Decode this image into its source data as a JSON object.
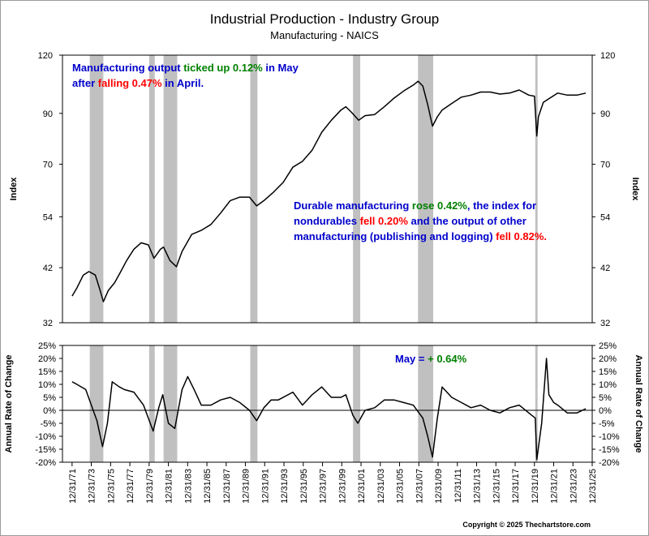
{
  "chart_data": [
    {
      "type": "line",
      "title": "Industrial Production - Industry Group",
      "subtitle": "Manufacturing - NAICS",
      "ylabel": "Index",
      "yscale": "log",
      "ylim": [
        32,
        120
      ],
      "yticks": [
        32,
        42,
        54,
        70,
        90,
        120
      ],
      "xlim": [
        "1971-01-01",
        "2025-12-31"
      ],
      "grid": false,
      "recessions": [
        [
          "1969-12-01",
          "1970-11-30"
        ],
        [
          "1973-11-01",
          "1975-03-31"
        ],
        [
          "1980-01-01",
          "1980-07-31"
        ],
        [
          "1981-07-01",
          "1982-11-30"
        ],
        [
          "1990-07-01",
          "1991-03-31"
        ],
        [
          "2001-03-01",
          "2001-11-30"
        ],
        [
          "2007-12-01",
          "2009-06-30"
        ],
        [
          "2020-02-01",
          "2020-04-30"
        ]
      ],
      "annotations": [
        {
          "parts": [
            {
              "text": "Manufacturing output ",
              "color": "#0000cc"
            },
            {
              "text": "ticked up 0.12%",
              "color": "#008000"
            },
            {
              "text": " in May",
              "color": "#0000cc"
            }
          ]
        },
        {
          "parts": [
            {
              "text": "after ",
              "color": "#0000cc"
            },
            {
              "text": "falling 0.47%",
              "color": "#ff0000"
            },
            {
              "text": " in April.",
              "color": "#0000cc"
            }
          ]
        },
        {
          "parts": [
            {
              "text": "Durable manufacturing ",
              "color": "#0000cc"
            },
            {
              "text": "rose 0.42%",
              "color": "#008000"
            },
            {
              "text": ", the index for",
              "color": "#0000cc"
            }
          ]
        },
        {
          "parts": [
            {
              "text": "nondurables ",
              "color": "#0000cc"
            },
            {
              "text": "fell 0.20%",
              "color": "#ff0000"
            },
            {
              "text": " and the output of other",
              "color": "#0000cc"
            }
          ]
        },
        {
          "parts": [
            {
              "text": "manufacturing (publishing and logging) ",
              "color": "#0000cc"
            },
            {
              "text": "fell 0.82%.",
              "color": "#ff0000"
            }
          ]
        }
      ],
      "series": [
        {
          "values": [
            [
              "1972-01-01",
              36.5
            ],
            [
              "1972-07-01",
              38.0
            ],
            [
              "1973-03-01",
              40.5
            ],
            [
              "1973-10-01",
              41.2
            ],
            [
              "1974-06-01",
              40.5
            ],
            [
              "1974-11-01",
              38.0
            ],
            [
              "1975-04-01",
              35.5
            ],
            [
              "1975-10-01",
              37.5
            ],
            [
              "1976-06-01",
              39.0
            ],
            [
              "1977-01-01",
              41.0
            ],
            [
              "1977-09-01",
              43.5
            ],
            [
              "1978-06-01",
              46.0
            ],
            [
              "1979-03-01",
              47.5
            ],
            [
              "1979-12-01",
              47.0
            ],
            [
              "1980-07-01",
              44.0
            ],
            [
              "1981-03-01",
              46.0
            ],
            [
              "1981-07-01",
              46.5
            ],
            [
              "1982-03-01",
              43.5
            ],
            [
              "1982-11-01",
              42.2
            ],
            [
              "1983-06-01",
              45.5
            ],
            [
              "1984-06-01",
              49.5
            ],
            [
              "1985-06-01",
              50.5
            ],
            [
              "1986-06-01",
              52.0
            ],
            [
              "1987-06-01",
              55.0
            ],
            [
              "1988-06-01",
              58.5
            ],
            [
              "1989-06-01",
              59.5
            ],
            [
              "1990-06-01",
              59.5
            ],
            [
              "1991-03-01",
              57.0
            ],
            [
              "1991-12-01",
              58.5
            ],
            [
              "1992-12-01",
              61.0
            ],
            [
              "1993-12-01",
              64.0
            ],
            [
              "1994-12-01",
              69.0
            ],
            [
              "1995-12-01",
              71.0
            ],
            [
              "1996-12-01",
              75.0
            ],
            [
              "1997-12-01",
              82.0
            ],
            [
              "1998-12-01",
              87.0
            ],
            [
              "1999-12-01",
              91.5
            ],
            [
              "2000-06-01",
              93.0
            ],
            [
              "2001-01-01",
              90.5
            ],
            [
              "2001-10-01",
              87.0
            ],
            [
              "2002-06-01",
              89.0
            ],
            [
              "2003-06-01",
              89.5
            ],
            [
              "2004-06-01",
              93.0
            ],
            [
              "2005-06-01",
              97.0
            ],
            [
              "2006-06-01",
              100.5
            ],
            [
              "2007-06-01",
              103.5
            ],
            [
              "2007-12-01",
              105.5
            ],
            [
              "2008-06-01",
              103.0
            ],
            [
              "2008-12-01",
              94.0
            ],
            [
              "2009-06-01",
              84.5
            ],
            [
              "2009-12-01",
              88.5
            ],
            [
              "2010-06-01",
              91.5
            ],
            [
              "2011-06-01",
              94.5
            ],
            [
              "2012-06-01",
              97.5
            ],
            [
              "2013-06-01",
              98.5
            ],
            [
              "2014-06-01",
              100.0
            ],
            [
              "2015-06-01",
              100.0
            ],
            [
              "2016-06-01",
              99.0
            ],
            [
              "2017-06-01",
              99.5
            ],
            [
              "2018-06-01",
              101.0
            ],
            [
              "2019-06-01",
              98.5
            ],
            [
              "2020-01-01",
              98.0
            ],
            [
              "2020-04-01",
              80.5
            ],
            [
              "2020-06-01",
              88.5
            ],
            [
              "2020-12-01",
              95.0
            ],
            [
              "2021-06-01",
              96.5
            ],
            [
              "2022-06-01",
              99.5
            ],
            [
              "2023-06-01",
              98.5
            ],
            [
              "2024-06-01",
              98.5
            ],
            [
              "2025-05-01",
              99.5
            ]
          ],
          "color": "#000000"
        }
      ]
    },
    {
      "type": "line",
      "ylabel": "Annual Rate of Change",
      "ylim": [
        -20,
        25
      ],
      "yticks": [
        -20,
        -15,
        -10,
        -5,
        0,
        5,
        10,
        15,
        20,
        25
      ],
      "ytick_labels": [
        "-20%",
        "-15%",
        "-10%",
        "-5%",
        "0%",
        "5%",
        "10%",
        "15%",
        "20%",
        "25%"
      ],
      "xlim": [
        "1971-01-01",
        "2025-12-31"
      ],
      "xticks": [
        "1971-12-31",
        "1973-12-31",
        "1975-12-31",
        "1977-12-31",
        "1979-12-31",
        "1981-12-31",
        "1983-12-31",
        "1985-12-31",
        "1987-12-31",
        "1989-12-31",
        "1991-12-31",
        "1993-12-31",
        "1995-12-31",
        "1997-12-31",
        "1999-12-31",
        "2001-12-31",
        "2003-12-31",
        "2005-12-31",
        "2007-12-31",
        "2009-12-31",
        "2011-12-31",
        "2013-12-31",
        "2015-12-31",
        "2017-12-31",
        "2019-12-31",
        "2021-12-31",
        "2023-12-31",
        "2025-12-31"
      ],
      "xtick_labels": [
        "12/31/71",
        "12/31/73",
        "12/31/75",
        "12/31/77",
        "12/31/79",
        "12/31/81",
        "12/31/83",
        "12/31/85",
        "12/31/87",
        "12/31/89",
        "12/31/91",
        "12/31/93",
        "12/31/95",
        "12/31/97",
        "12/31/99",
        "12/31/01",
        "12/31/03",
        "12/31/05",
        "12/31/07",
        "12/31/09",
        "12/31/11",
        "12/31/13",
        "12/31/15",
        "12/31/17",
        "12/31/19",
        "12/31/21",
        "12/31/23",
        "12/31/25"
      ],
      "zero_line": true,
      "annotations": [
        {
          "parts": [
            {
              "text": "May = ",
              "color": "#0000cc"
            },
            {
              "text": "+ 0.64%",
              "color": "#008000"
            }
          ]
        }
      ],
      "series": [
        {
          "values": [
            [
              "1972-01-01",
              11
            ],
            [
              "1972-07-01",
              10
            ],
            [
              "1973-06-01",
              8
            ],
            [
              "1974-01-01",
              2
            ],
            [
              "1974-08-01",
              -4
            ],
            [
              "1975-03-01",
              -14
            ],
            [
              "1975-09-01",
              -5
            ],
            [
              "1976-03-01",
              11
            ],
            [
              "1976-12-01",
              9
            ],
            [
              "1977-06-01",
              8
            ],
            [
              "1978-06-01",
              7
            ],
            [
              "1979-06-01",
              2
            ],
            [
              "1980-06-01",
              -8
            ],
            [
              "1981-01-01",
              1
            ],
            [
              "1981-06-01",
              6
            ],
            [
              "1982-01-01",
              -5
            ],
            [
              "1982-09-01",
              -7
            ],
            [
              "1983-06-01",
              8
            ],
            [
              "1984-01-01",
              13
            ],
            [
              "1984-09-01",
              8
            ],
            [
              "1985-06-01",
              2
            ],
            [
              "1986-06-01",
              2
            ],
            [
              "1987-06-01",
              4
            ],
            [
              "1988-06-01",
              5
            ],
            [
              "1989-06-01",
              3
            ],
            [
              "1990-06-01",
              0
            ],
            [
              "1991-03-01",
              -4
            ],
            [
              "1991-12-01",
              1
            ],
            [
              "1992-09-01",
              4
            ],
            [
              "1993-06-01",
              4
            ],
            [
              "1994-12-01",
              7
            ],
            [
              "1995-12-01",
              2
            ],
            [
              "1996-12-01",
              6
            ],
            [
              "1997-12-01",
              9
            ],
            [
              "1998-12-01",
              5
            ],
            [
              "1999-12-01",
              5
            ],
            [
              "2000-06-01",
              6
            ],
            [
              "2001-03-01",
              -2
            ],
            [
              "2001-09-01",
              -5
            ],
            [
              "2002-06-01",
              0
            ],
            [
              "2003-06-01",
              1
            ],
            [
              "2004-06-01",
              4
            ],
            [
              "2005-06-01",
              4
            ],
            [
              "2006-06-01",
              3
            ],
            [
              "2007-06-01",
              2
            ],
            [
              "2008-06-01",
              -3
            ],
            [
              "2008-12-01",
              -10
            ],
            [
              "2009-06-01",
              -18
            ],
            [
              "2009-12-01",
              -3
            ],
            [
              "2010-06-01",
              9
            ],
            [
              "2011-06-01",
              5
            ],
            [
              "2012-06-01",
              3
            ],
            [
              "2013-06-01",
              1
            ],
            [
              "2014-06-01",
              2
            ],
            [
              "2015-06-01",
              0
            ],
            [
              "2016-06-01",
              -1
            ],
            [
              "2017-06-01",
              1
            ],
            [
              "2018-06-01",
              2
            ],
            [
              "2019-06-01",
              -1
            ],
            [
              "2020-02-01",
              -3
            ],
            [
              "2020-04-01",
              -19
            ],
            [
              "2020-10-01",
              -5
            ],
            [
              "2021-04-01",
              20
            ],
            [
              "2021-07-01",
              6
            ],
            [
              "2022-01-01",
              3
            ],
            [
              "2022-06-01",
              2
            ],
            [
              "2023-06-01",
              -1
            ],
            [
              "2024-06-01",
              -1
            ],
            [
              "2025-05-01",
              0.64
            ]
          ],
          "color": "#000000"
        }
      ]
    }
  ],
  "copyright": "Copyright © 2025 Thechartstore.com"
}
